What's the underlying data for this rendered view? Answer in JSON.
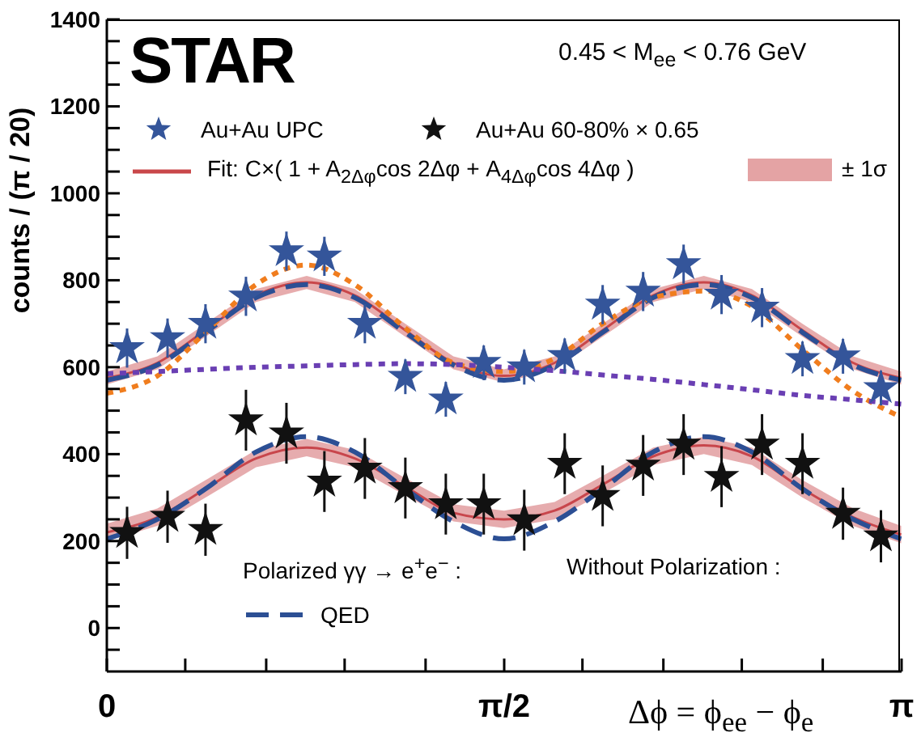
{
  "chart_data": {
    "type": "line",
    "title": "STAR",
    "xlabel": "Δϕ = ϕ$_{ee}$ − ϕ$_{e}$",
    "ylabel": "counts / (π / 20)",
    "annotations": [
      "0.45 < M$_{ee}$ < 0.76 GeV",
      "± 1σ",
      "Polarized γγ → e$^{+}$e$^{−}$ :",
      "Without Polarization :"
    ],
    "xlim": [
      0,
      3.1416
    ],
    "xticks": [
      {
        "value": 0,
        "label": "0"
      },
      {
        "value": 0.31,
        "label": null
      },
      {
        "value": 0.63,
        "label": null
      },
      {
        "value": 0.94,
        "label": null
      },
      {
        "value": 1.26,
        "label": null
      },
      {
        "value": 1.5708,
        "label": "π/2"
      },
      {
        "value": 1.88,
        "label": null
      },
      {
        "value": 2.2,
        "label": null
      },
      {
        "value": 2.51,
        "label": null
      },
      {
        "value": 2.83,
        "label": null
      },
      {
        "value": 3.1416,
        "label": "π"
      }
    ],
    "ylim": [
      -100,
      1400
    ],
    "yticks": [
      {
        "value": -50,
        "label": null
      },
      0,
      {
        "value": 50,
        "label": null
      },
      {
        "value": 100,
        "label": null
      },
      {
        "value": 150,
        "label": null
      },
      200,
      {
        "value": 250,
        "label": null
      },
      {
        "value": 300,
        "label": null
      },
      {
        "value": 350,
        "label": null
      },
      400,
      {
        "value": 450,
        "label": null
      },
      {
        "value": 500,
        "label": null
      },
      {
        "value": 550,
        "label": null
      },
      600,
      {
        "value": 650,
        "label": null
      },
      {
        "value": 700,
        "label": null
      },
      {
        "value": 750,
        "label": null
      },
      800,
      {
        "value": 850,
        "label": null
      },
      {
        "value": 900,
        "label": null
      },
      {
        "value": 950,
        "label": null
      },
      1000,
      {
        "value": 1050,
        "label": null
      },
      {
        "value": 1100,
        "label": null
      },
      {
        "value": 1150,
        "label": null
      },
      1200,
      {
        "value": 1250,
        "label": null
      },
      {
        "value": 1300,
        "label": null
      },
      {
        "value": 1350,
        "label": null
      },
      1400
    ],
    "legend": "left",
    "series": [
      {
        "type": "scatter",
        "name": "Au+Au UPC",
        "color": "#34559a",
        "marker": "star",
        "x": [
          0.08,
          0.24,
          0.39,
          0.55,
          0.71,
          0.86,
          1.02,
          1.18,
          1.34,
          1.49,
          1.65,
          1.81,
          1.96,
          2.12,
          2.28,
          2.43,
          2.59,
          2.75,
          2.91,
          3.06
        ],
        "values": [
          644,
          667,
          700,
          763,
          867,
          855,
          700,
          578,
          526,
          610,
          600,
          626,
          744,
          774,
          837,
          767,
          737,
          619,
          625,
          552
        ],
        "errors": [
          45,
          45,
          45,
          45,
          45,
          45,
          45,
          40,
          40,
          40,
          40,
          40,
          45,
          45,
          45,
          45,
          45,
          40,
          40,
          40
        ]
      },
      {
        "type": "scatter",
        "name": "Au+Au 60-80% × 0.65",
        "color": "#111111",
        "marker": "star",
        "x": [
          0.08,
          0.24,
          0.39,
          0.55,
          0.71,
          0.86,
          1.02,
          1.18,
          1.34,
          1.49,
          1.65,
          1.81,
          1.96,
          2.12,
          2.28,
          2.43,
          2.59,
          2.75,
          2.91,
          3.06
        ],
        "values": [
          219,
          256,
          226,
          478,
          448,
          337,
          367,
          322,
          285,
          285,
          248,
          378,
          304,
          374,
          422,
          348,
          422,
          378,
          263,
          211
        ],
        "errors": [
          60,
          60,
          60,
          70,
          70,
          70,
          70,
          70,
          70,
          70,
          70,
          70,
          70,
          70,
          70,
          70,
          70,
          70,
          60,
          60
        ]
      },
      {
        "name": "Fit: C×( 1 + A$_{2Δφ}$cos 2Δφ + A$_{4Δφ}$cos 4Δφ )",
        "color": "#c9474a",
        "line_style": "solid",
        "x": [
          0,
          0.2,
          0.39,
          0.59,
          0.79,
          0.98,
          1.18,
          1.37,
          1.57,
          1.77,
          1.96,
          2.16,
          2.36,
          2.55,
          2.75,
          2.95,
          3.14
        ],
        "values": [
          575,
          610,
          685,
          765,
          795,
          765,
          685,
          610,
          580,
          610,
          685,
          765,
          795,
          765,
          685,
          610,
          575
        ],
        "lower": [
          560,
          595,
          670,
          750,
          780,
          750,
          670,
          595,
          565,
          595,
          670,
          750,
          780,
          750,
          670,
          595,
          560
        ],
        "upper": [
          590,
          625,
          700,
          780,
          810,
          780,
          700,
          625,
          595,
          625,
          700,
          780,
          810,
          780,
          700,
          625,
          590
        ]
      },
      {
        "color": "#c8464c",
        "line_style": "solid",
        "x": [
          0,
          0.2,
          0.39,
          0.59,
          0.79,
          0.98,
          1.18,
          1.37,
          1.57,
          1.77,
          1.96,
          2.16,
          2.36,
          2.55,
          2.75,
          2.95,
          3.14
        ],
        "values": [
          220,
          255,
          320,
          390,
          415,
          390,
          325,
          265,
          250,
          270,
          330,
          395,
          420,
          395,
          320,
          255,
          215
        ],
        "lower": [
          200,
          235,
          300,
          370,
          395,
          370,
          305,
          245,
          230,
          250,
          310,
          375,
          400,
          375,
          300,
          235,
          195
        ],
        "upper": [
          240,
          275,
          340,
          410,
          435,
          410,
          345,
          285,
          270,
          290,
          350,
          415,
          440,
          415,
          340,
          275,
          235
        ]
      },
      {
        "name": "QED",
        "color": "#2c4f94",
        "line_style": "dashed",
        "x": [
          0,
          0.2,
          0.39,
          0.59,
          0.79,
          0.98,
          1.18,
          1.37,
          1.57,
          1.77,
          1.96,
          2.16,
          2.36,
          2.55,
          2.75,
          2.95,
          3.14
        ],
        "values": [
          570,
          605,
          680,
          760,
          790,
          760,
          680,
          605,
          570,
          605,
          680,
          760,
          790,
          760,
          680,
          605,
          570
        ]
      },
      {
        "color": "#2c4f94",
        "line_style": "dashed",
        "x": [
          0,
          0.2,
          0.39,
          0.59,
          0.79,
          0.98,
          1.18,
          1.37,
          1.57,
          1.77,
          1.96,
          2.16,
          2.36,
          2.55,
          2.75,
          2.95,
          3.14
        ],
        "values": [
          205,
          250,
          320,
          405,
          440,
          405,
          320,
          245,
          205,
          245,
          320,
          405,
          440,
          405,
          320,
          250,
          205
        ]
      },
      {
        "color": "#f07d1e",
        "line_style": "dotted",
        "x": [
          0,
          0.2,
          0.39,
          0.59,
          0.79,
          0.98,
          1.18,
          1.37,
          1.57,
          1.77,
          1.96,
          2.16,
          2.36,
          2.55,
          2.75,
          2.95,
          3.14
        ],
        "values": [
          540,
          580,
          680,
          790,
          835,
          790,
          690,
          610,
          590,
          620,
          700,
          760,
          775,
          740,
          640,
          545,
          485
        ]
      },
      {
        "color": "#6a3fb3",
        "line_style": "dotted",
        "x": [
          0,
          0.2,
          0.39,
          0.59,
          0.79,
          0.98,
          1.18,
          1.37,
          1.57,
          1.77,
          1.96,
          2.16,
          2.36,
          2.55,
          2.75,
          2.95,
          3.14
        ],
        "values": [
          585,
          590,
          595,
          600,
          603,
          606,
          608,
          606,
          600,
          592,
          582,
          572,
          560,
          548,
          535,
          525,
          515
        ]
      }
    ]
  }
}
